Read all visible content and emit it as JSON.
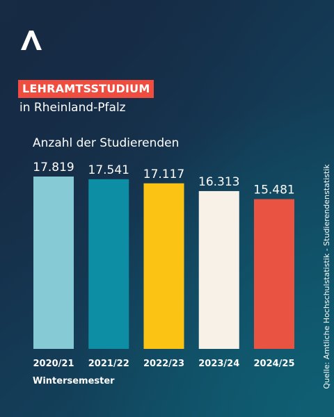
{
  "header": {
    "logo_icon": "chevron-up-logo-icon",
    "kicker": "LEHRAMTSSTUDIUM",
    "kicker_color": "#ef4d3f",
    "subtitle": "in Rheinland-Pfalz"
  },
  "source": "Quelle: Amtliche Hochschulstatistik - Studierendenstatistik",
  "chart_data": {
    "type": "bar",
    "title": "Anzahl der Studierenden",
    "xlabel": "Wintersemester",
    "ylabel": "",
    "categories": [
      "2020/21",
      "2021/22",
      "2022/23",
      "2023/24",
      "2024/25"
    ],
    "values": [
      17819,
      17541,
      17117,
      16313,
      15481
    ],
    "value_labels": [
      "17.819",
      "17.541",
      "17.117",
      "16.313",
      "15.481"
    ],
    "colors": [
      "#86cad6",
      "#0e8ea4",
      "#fbc414",
      "#f8f1e8",
      "#e95341"
    ],
    "ylim": [
      0,
      17819
    ],
    "grid": false,
    "legend": "none"
  }
}
